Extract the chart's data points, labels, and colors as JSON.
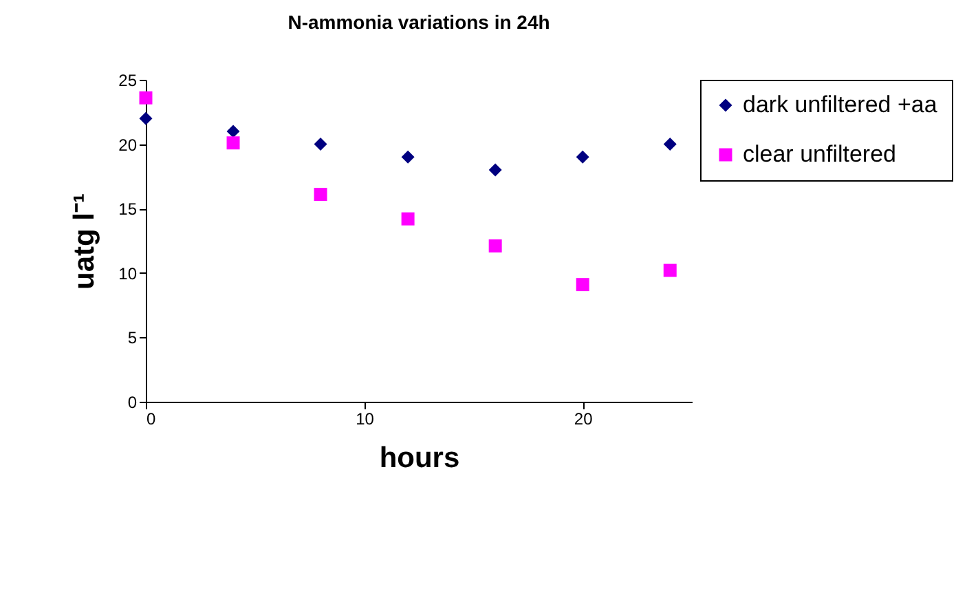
{
  "chart_data": {
    "type": "scatter",
    "title": "N-ammonia variations in 24h",
    "xlabel": "hours",
    "ylabel": "uatg l⁻¹",
    "x": [
      0,
      4,
      8,
      12,
      16,
      20,
      24
    ],
    "xlim": [
      0,
      25
    ],
    "xticks": [
      0,
      10,
      20
    ],
    "ylim": [
      0,
      25
    ],
    "yticks": [
      0,
      5,
      10,
      15,
      20,
      25
    ],
    "legend": "right",
    "series": [
      {
        "name": "dark unfiltered +aa",
        "color": "#000080",
        "marker": "diamond",
        "values": [
          22,
          21,
          20,
          19,
          18,
          19,
          20
        ]
      },
      {
        "name": "clear unfiltered",
        "color": "#ff00ff",
        "marker": "square",
        "values": [
          23.6,
          20.1,
          16.1,
          14.2,
          12.1,
          9.1,
          10.2
        ]
      }
    ]
  }
}
